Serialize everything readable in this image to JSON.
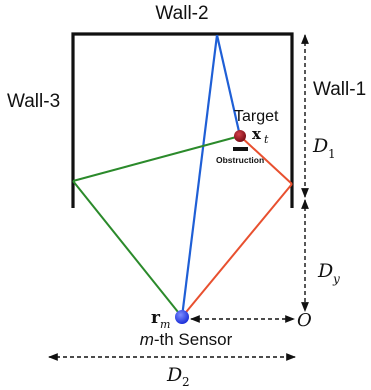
{
  "walls": {
    "wall1": "Wall-1",
    "wall2": "Wall-2",
    "wall3": "Wall-3"
  },
  "target": {
    "label": "Target",
    "symbol": "x",
    "subscript": "t",
    "color": "#9b1420"
  },
  "obstruction": {
    "label": "Obstruction"
  },
  "sensor": {
    "symbol": "r",
    "subscript": "m",
    "label_m": "m",
    "label_rest": "-th Sensor",
    "color": "#2442ff"
  },
  "dimensions": {
    "d1": "D",
    "d1_sub": "1",
    "dy": "D",
    "dy_sub": "y",
    "d2": "D",
    "d2_sub": "2",
    "origin": "O"
  },
  "paths": {
    "blue": "#1f5fd6",
    "red": "#e8502f",
    "green": "#2b8a2b"
  }
}
